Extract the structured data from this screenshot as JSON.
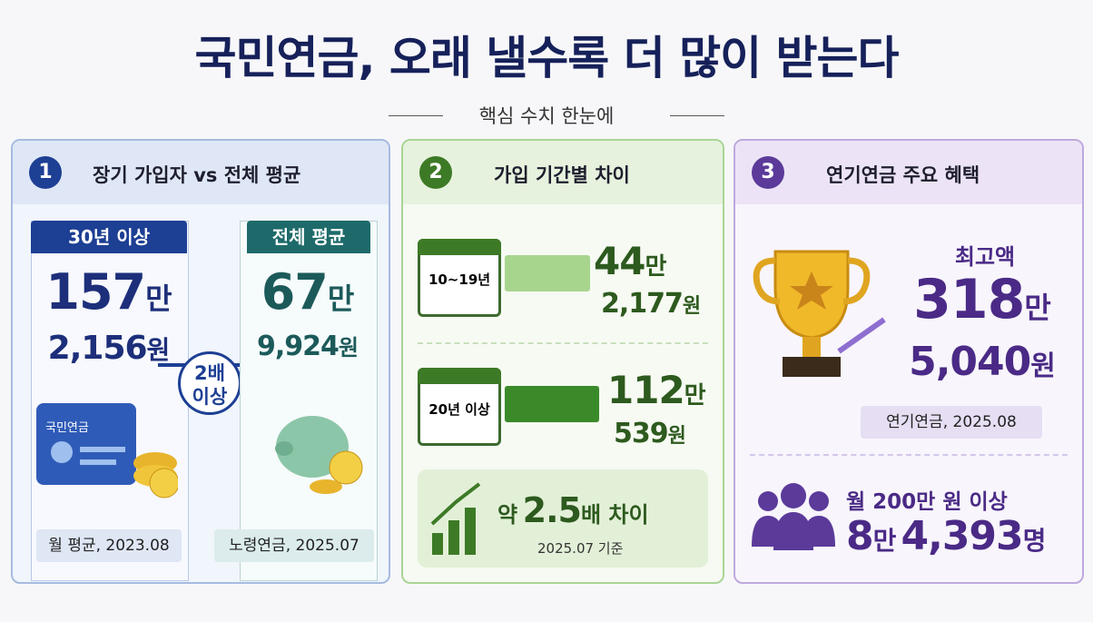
{
  "header": {
    "title": "국민연금, 오래 낼수록 더 많이 받는다",
    "subtitle": "핵심 수치 한눈에"
  },
  "panels": [
    {
      "number": "1",
      "heading": "장기 가입자 vs 전체 평균",
      "left": {
        "badge": "30년 이상",
        "amount_main": "157",
        "amount_unit": "만",
        "won_main": "2,156",
        "won_unit": "원",
        "card_label": "국민연금",
        "footnote": "월 평균, 2023.08"
      },
      "compare": [
        "2배",
        "이상"
      ],
      "right": {
        "badge": "전체 평균",
        "amount_main": "67",
        "amount_unit": "만",
        "won_main": "9,924",
        "won_unit": "원",
        "footnote": "노령연금, 2025.07"
      }
    },
    {
      "number": "2",
      "heading": "가입 기간별 차이",
      "rows": [
        {
          "period": "10~19년",
          "amount_main": "44",
          "amount_unit": "만",
          "won_main": "2,177",
          "won_unit": "원"
        },
        {
          "period": "20년 이상",
          "amount_main": "112",
          "amount_unit": "만",
          "won_main": "539",
          "won_unit": "원"
        }
      ],
      "summary": {
        "prefix": "약",
        "ratio": "2.5",
        "suffix": "배 차이",
        "note": "2025.07 기준"
      }
    },
    {
      "number": "3",
      "heading": "연기연금 주요 혜택",
      "top_label": "최고액",
      "amount_main": "318",
      "amount_unit": "만",
      "won_main": "5,040",
      "won_unit": "원",
      "footnote": "연기연금, 2025.08",
      "count_label": "월 200만 원 이상",
      "count_a_main": "8",
      "count_a_unit": "만",
      "count_b_main": "4,393",
      "count_b_unit": "명"
    }
  ]
}
